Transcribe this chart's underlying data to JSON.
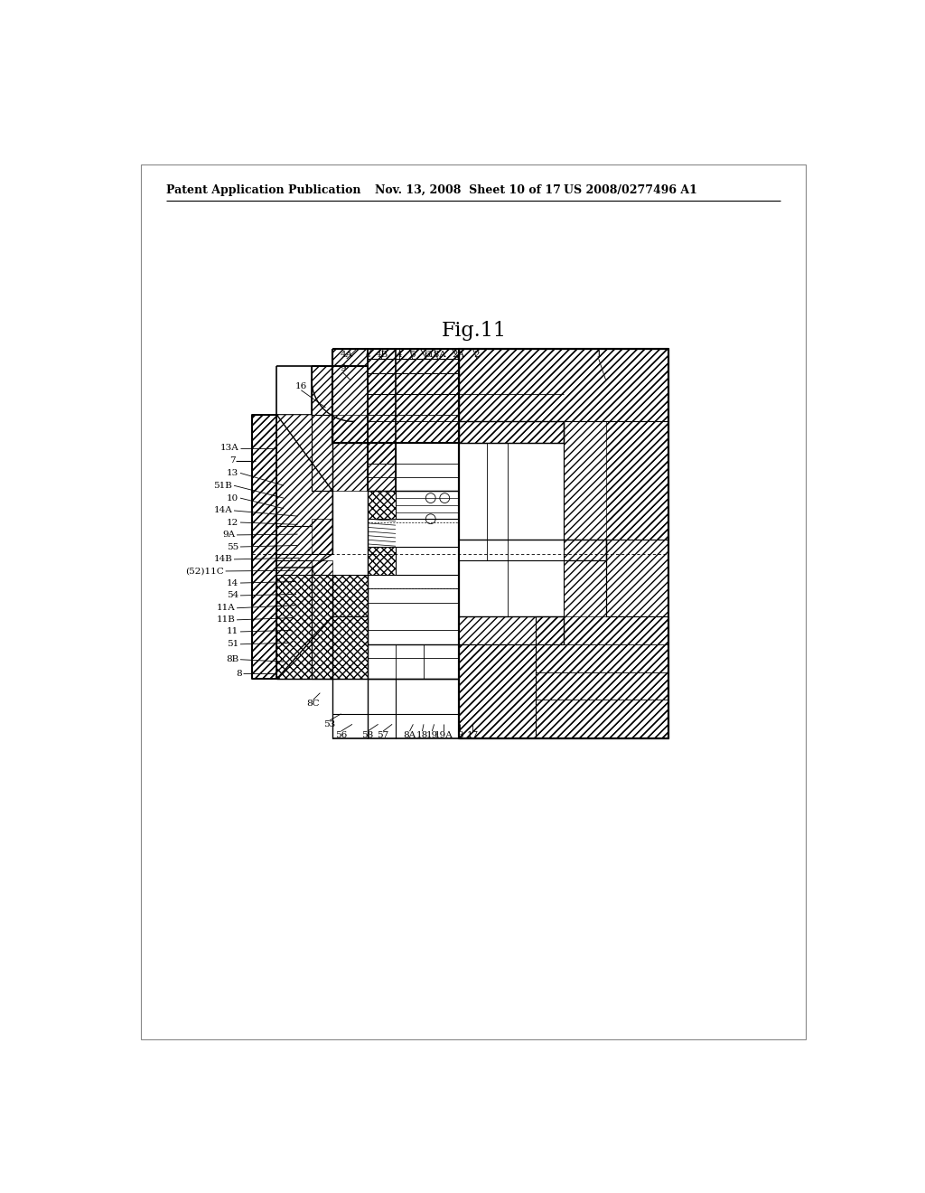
{
  "background_color": "#ffffff",
  "header_left": "Patent Application Publication",
  "header_mid": "Nov. 13, 2008  Sheet 10 of 17",
  "header_right": "US 2008/0277496 A1",
  "fig_title": "Fig.11",
  "page_width": 10.24,
  "page_height": 13.2,
  "dpi": 100
}
